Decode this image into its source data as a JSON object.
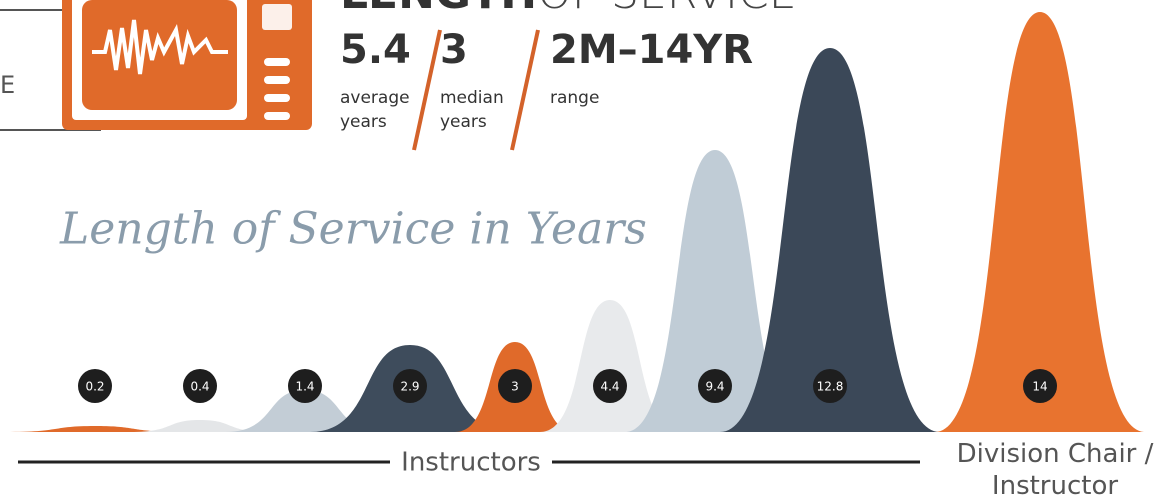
{
  "side_text": "E",
  "header": {
    "title_bold": "LENGTH",
    "title_light": "OF SERVICE",
    "stats": [
      {
        "value": "5.4",
        "label": "average years"
      },
      {
        "value": "3",
        "label": "median years"
      },
      {
        "value": "2M–14YR",
        "label": "range"
      }
    ]
  },
  "chart_data": {
    "type": "peak",
    "title": "Length of Service in Years",
    "values": [
      0.2,
      0.4,
      1.4,
      2.9,
      3,
      4.4,
      9.4,
      12.8,
      14
    ],
    "colors": [
      "#e06a2a",
      "#e4e6e8",
      "#c3cdd6",
      "#3e4c5c",
      "#e06a2a",
      "#e8eaec",
      "#c0ccd6",
      "#3b4858",
      "#e8732f"
    ],
    "groups": [
      "Instructors",
      "Division Chair / Instructor"
    ]
  }
}
